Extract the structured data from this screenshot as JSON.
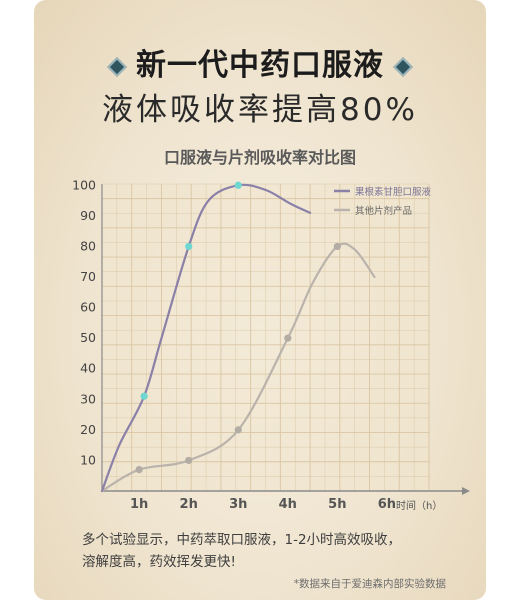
{
  "headline": "新一代中药口服液",
  "subheadline": "液体吸收率提高80%",
  "caption": {
    "line1": "多个试验显示，中药萃取口服液，1-2小时高效吸收，",
    "line2": "溶解度高，药效挥发更快!"
  },
  "footnote": "*数据来自于爱迪森内部实验数据",
  "colors": {
    "product_line": "#8a80a8",
    "product_marker": "#6fd6d0",
    "other_line": "#bab3ac",
    "other_marker": "#b3aca5",
    "grid": "#d9c6a4",
    "axis": "#8a8a8a"
  },
  "chart_data": {
    "type": "line",
    "title": "口服液与片剂吸收率对比图",
    "xlabel": "时间（h）",
    "ylabel": "",
    "x_ticks": [
      "1h",
      "2h",
      "3h",
      "4h",
      "5h",
      "6h"
    ],
    "y_ticks": [
      10,
      20,
      30,
      40,
      50,
      60,
      70,
      80,
      90,
      100
    ],
    "xlim": [
      0,
      6.6
    ],
    "ylim": [
      0,
      105
    ],
    "grid": true,
    "legend_position": "top-right",
    "series": [
      {
        "name": "果根素甘胆口服液",
        "markers": [
          {
            "x": 0.85,
            "y": 31
          },
          {
            "x": 1.75,
            "y": 80
          },
          {
            "x": 2.75,
            "y": 100
          }
        ],
        "curve": [
          [
            0,
            0
          ],
          [
            0.35,
            15
          ],
          [
            0.85,
            31
          ],
          [
            1.2,
            50
          ],
          [
            1.75,
            80
          ],
          [
            2.15,
            95
          ],
          [
            2.75,
            100
          ],
          [
            3.3,
            98.5
          ],
          [
            3.8,
            94
          ],
          [
            4.2,
            91
          ]
        ]
      },
      {
        "name": "其他片剂产品",
        "markers": [
          {
            "x": 0.75,
            "y": 7
          },
          {
            "x": 1.75,
            "y": 10
          },
          {
            "x": 2.75,
            "y": 20
          },
          {
            "x": 3.75,
            "y": 50
          },
          {
            "x": 4.75,
            "y": 80
          }
        ],
        "curve": [
          [
            0,
            0
          ],
          [
            0.75,
            7
          ],
          [
            1.75,
            10
          ],
          [
            2.75,
            20
          ],
          [
            3.75,
            50
          ],
          [
            4.25,
            68
          ],
          [
            4.75,
            80
          ],
          [
            5.1,
            79
          ],
          [
            5.5,
            70
          ]
        ]
      }
    ]
  }
}
